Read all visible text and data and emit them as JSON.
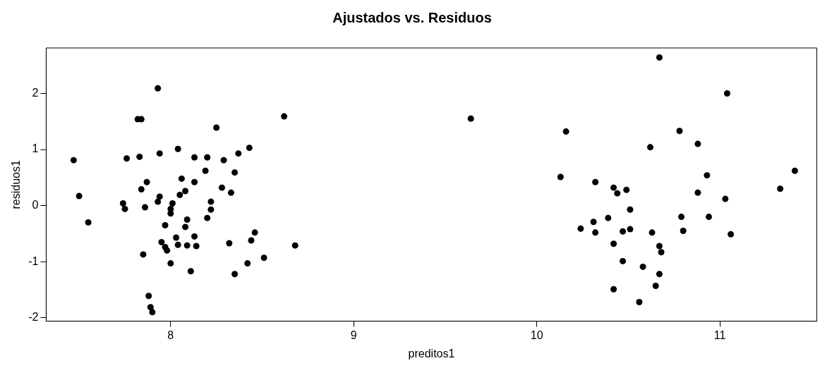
{
  "chart_data": {
    "type": "scatter",
    "title": "Ajustados vs. Residuos",
    "xlabel": "preditos1",
    "ylabel": "residuos1",
    "xlim": [
      7.32,
      11.53
    ],
    "ylim": [
      -2.06,
      2.81
    ],
    "xticks": [
      8,
      9,
      10,
      11
    ],
    "yticks": [
      -2,
      -1,
      0,
      1,
      2
    ],
    "grid": false,
    "legend": false,
    "marker": "circle",
    "series": [
      {
        "color": "#000000",
        "x": [
          7.93,
          7.82,
          7.84,
          8.04,
          7.47,
          7.76,
          7.83,
          7.94,
          8.13,
          8.2,
          8.19,
          8.06,
          8.13,
          7.87,
          7.84,
          7.5,
          7.94,
          7.93,
          8.05,
          8.08,
          8.01,
          8.0,
          8.0,
          7.74,
          7.75,
          7.86,
          7.55,
          7.97,
          8.09,
          8.08,
          8.13,
          8.03,
          8.04,
          8.09,
          8.14,
          7.95,
          7.97,
          7.98,
          7.85,
          8.0,
          8.11,
          7.88,
          7.89,
          7.9,
          8.2,
          8.62,
          8.25,
          8.43,
          8.37,
          8.29,
          8.35,
          8.28,
          8.33,
          8.22,
          8.22,
          8.46,
          8.44,
          8.32,
          8.68,
          8.51,
          8.42,
          8.35,
          9.64,
          10.67,
          10.16,
          10.78,
          10.62,
          10.13,
          10.32,
          10.42,
          10.44,
          10.49,
          10.51,
          10.79,
          10.39,
          10.31,
          10.24,
          10.32,
          10.47,
          10.51,
          10.63,
          10.8,
          10.42,
          10.67,
          10.68,
          10.47,
          10.58,
          10.67,
          10.42,
          10.65,
          10.56,
          11.04,
          10.88,
          10.93,
          10.88,
          11.41,
          11.33,
          11.03,
          10.94,
          11.06
        ],
        "values": [
          2.09,
          1.54,
          1.54,
          1.01,
          0.81,
          0.84,
          0.87,
          0.93,
          0.86,
          0.86,
          0.62,
          0.48,
          0.42,
          0.42,
          0.29,
          0.17,
          0.16,
          0.07,
          0.19,
          0.26,
          0.04,
          -0.06,
          -0.14,
          0.04,
          -0.06,
          -0.03,
          -0.3,
          -0.35,
          -0.25,
          -0.38,
          -0.55,
          -0.57,
          -0.7,
          -0.71,
          -0.72,
          -0.65,
          -0.74,
          -0.8,
          -0.87,
          -1.03,
          -1.17,
          -1.61,
          -1.81,
          -1.9,
          -0.22,
          1.59,
          1.39,
          1.03,
          0.93,
          0.81,
          0.59,
          0.32,
          0.23,
          0.07,
          -0.07,
          -0.48,
          -0.62,
          -0.67,
          -0.71,
          -0.93,
          -1.03,
          -1.22,
          1.55,
          2.64,
          1.32,
          1.33,
          1.04,
          0.51,
          0.42,
          0.32,
          0.22,
          0.28,
          -0.07,
          -0.2,
          -0.22,
          -0.29,
          -0.41,
          -0.48,
          -0.46,
          -0.42,
          -0.48,
          -0.45,
          -0.68,
          -0.72,
          -0.83,
          -0.99,
          -1.09,
          -1.22,
          -1.49,
          -1.43,
          -1.72,
          2.0,
          1.1,
          0.54,
          0.23,
          0.62,
          0.3,
          0.12,
          -0.2,
          -0.51
        ]
      }
    ]
  }
}
